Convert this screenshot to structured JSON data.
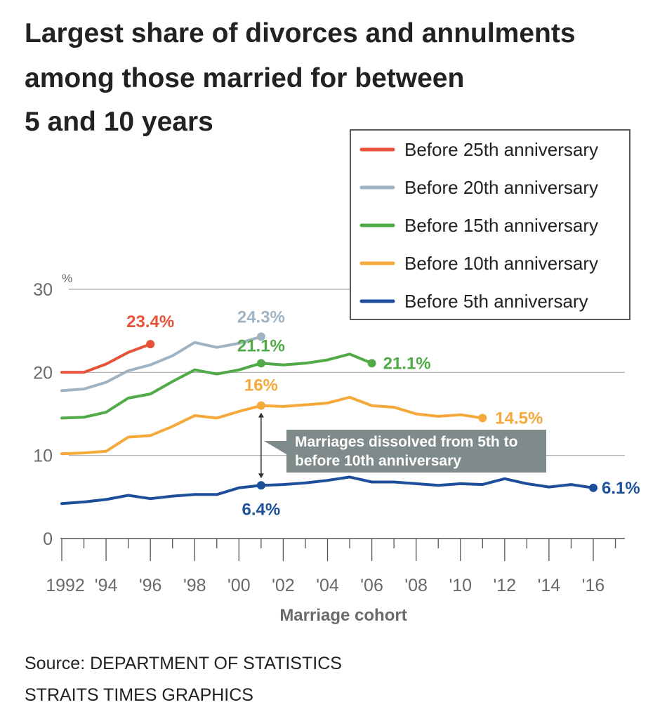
{
  "title_lines": [
    "Largest share of divorces and annulments",
    "among those married for between",
    "5 and 10 years"
  ],
  "source_lines": [
    "Source: DEPARTMENT OF STATISTICS",
    "STRAITS TIMES GRAPHICS"
  ],
  "callout": {
    "lines": [
      "Marriages dissolved from 5th to",
      "before 10th anniversary"
    ],
    "color": "#7f8a8a"
  },
  "chart_data": {
    "type": "line",
    "title": "Largest share of divorces and annulments among those married for between 5 and 10 years",
    "xlabel": "Marriage cohort",
    "ylabel": "",
    "y_unit": "%",
    "xlim": [
      1992,
      2016
    ],
    "ylim": [
      0,
      30
    ],
    "y_ticks": [
      0,
      10,
      20,
      30
    ],
    "x_ticks": [
      1992,
      1994,
      1996,
      1998,
      2000,
      2002,
      2004,
      2006,
      2008,
      2010,
      2012,
      2014,
      2016
    ],
    "x_tick_labels": [
      "1992",
      "'94",
      "'96",
      "'98",
      "'00",
      "'02",
      "'04",
      "'06",
      "'08",
      "'10",
      "'12",
      "'14",
      "'16"
    ],
    "grid": "horizontal",
    "legend_position": "top-right",
    "series": [
      {
        "name": "Before 25th anniversary",
        "color": "#e5533a",
        "x": [
          1992,
          1993,
          1994,
          1995,
          1996
        ],
        "values": [
          20.0,
          20.0,
          21.0,
          22.4,
          23.4
        ],
        "end_label": "23.4%"
      },
      {
        "name": "Before 20th anniversary",
        "color": "#9fb3c2",
        "x": [
          1992,
          1993,
          1994,
          1995,
          1996,
          1997,
          1998,
          1999,
          2000,
          2001
        ],
        "values": [
          17.8,
          18.0,
          18.8,
          20.2,
          20.9,
          22.0,
          23.6,
          23.0,
          23.5,
          24.3
        ],
        "end_label": "24.3%"
      },
      {
        "name": "Before 15th anniversary",
        "color": "#4faa47",
        "x": [
          1992,
          1993,
          1994,
          1995,
          1996,
          1997,
          1998,
          1999,
          2000,
          2001,
          2002,
          2003,
          2004,
          2005,
          2006
        ],
        "values": [
          14.5,
          14.6,
          15.2,
          16.9,
          17.4,
          18.9,
          20.3,
          19.8,
          20.3,
          21.1,
          20.9,
          21.1,
          21.5,
          22.2,
          21.1
        ],
        "end_label": "21.1%",
        "mid_label": {
          "x": 2001,
          "value": 21.1,
          "text": "21.1%"
        }
      },
      {
        "name": "Before 10th anniversary",
        "color": "#f6a93b",
        "x": [
          1992,
          1993,
          1994,
          1995,
          1996,
          1997,
          1998,
          1999,
          2000,
          2001,
          2002,
          2003,
          2004,
          2005,
          2006,
          2007,
          2008,
          2009,
          2010,
          2011
        ],
        "values": [
          10.2,
          10.3,
          10.5,
          12.2,
          12.4,
          13.5,
          14.8,
          14.5,
          15.3,
          16.0,
          15.9,
          16.1,
          16.3,
          17.0,
          16.0,
          15.8,
          15.0,
          14.7,
          14.9,
          14.5
        ],
        "end_label": "14.5%",
        "mid_label": {
          "x": 2001,
          "value": 16.0,
          "text": "16%"
        }
      },
      {
        "name": "Before 5th anniversary",
        "color": "#1d4f9b",
        "x": [
          1992,
          1993,
          1994,
          1995,
          1996,
          1997,
          1998,
          1999,
          2000,
          2001,
          2002,
          2003,
          2004,
          2005,
          2006,
          2007,
          2008,
          2009,
          2010,
          2011,
          2012,
          2013,
          2014,
          2015,
          2016
        ],
        "values": [
          4.2,
          4.4,
          4.7,
          5.2,
          4.8,
          5.1,
          5.3,
          5.3,
          6.1,
          6.4,
          6.5,
          6.7,
          7.0,
          7.4,
          6.8,
          6.8,
          6.6,
          6.4,
          6.6,
          6.5,
          7.2,
          6.6,
          6.2,
          6.5,
          6.1
        ],
        "end_label": "6.1%",
        "mid_label": {
          "x": 2001,
          "value": 6.4,
          "text": "6.4%"
        }
      }
    ]
  }
}
